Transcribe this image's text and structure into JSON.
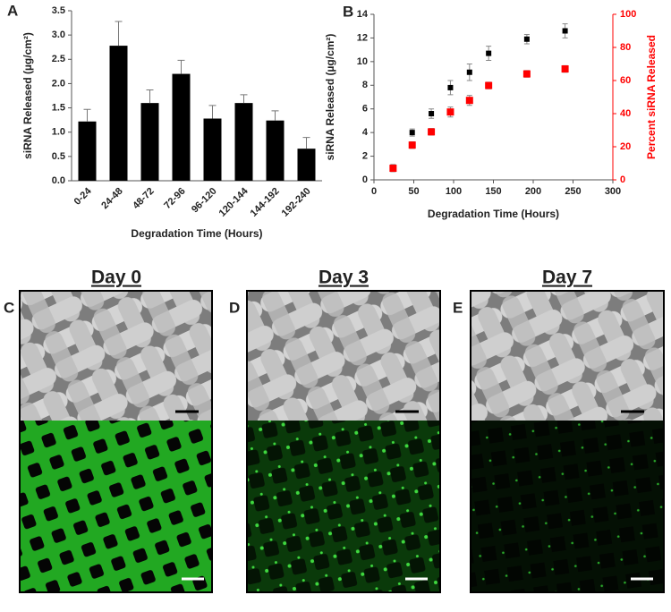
{
  "chart_data": [
    {
      "type": "bar",
      "panel": "A",
      "categories": [
        "0-24",
        "24-48",
        "48-72",
        "72-96",
        "96-120",
        "120-144",
        "144-192",
        "192-240"
      ],
      "values": [
        1.22,
        2.78,
        1.6,
        2.2,
        1.28,
        1.6,
        1.24,
        0.66
      ],
      "errors": [
        0.25,
        0.5,
        0.27,
        0.28,
        0.27,
        0.17,
        0.2,
        0.23
      ],
      "color": "#000000",
      "ylim": [
        0,
        3.5
      ],
      "yticks": [
        {
          "value": 0,
          "label": "0.0"
        },
        {
          "value": 0.5,
          "label": "0.5"
        },
        {
          "value": 1,
          "label": "1.0"
        },
        {
          "value": 1.5,
          "label": "1.5"
        },
        {
          "value": 2,
          "label": "2.0"
        },
        {
          "value": 2.5,
          "label": "2.5"
        },
        {
          "value": 3,
          "label": "3.0"
        },
        {
          "value": 3.5,
          "label": "3.5"
        }
      ],
      "ylabel": "siRNA Released  (µg/cm²)",
      "xlabel": "Degradation Time (Hours)"
    },
    {
      "type": "scatter",
      "panel": "B",
      "x": [
        24,
        48,
        72,
        96,
        120,
        144,
        192,
        240
      ],
      "series": [
        {
          "color": "#000000",
          "values": [
            1.0,
            4.0,
            5.6,
            7.8,
            9.1,
            10.7,
            11.9,
            12.6
          ],
          "errors": [
            0.3,
            0.3,
            0.4,
            0.6,
            0.7,
            0.6,
            0.4,
            0.6
          ]
        },
        {
          "color": "#ff0000",
          "axis": "y2",
          "values": [
            7,
            21,
            29,
            41,
            48,
            57,
            64,
            67
          ],
          "errors": [
            2,
            2,
            2,
            3,
            3,
            2,
            2,
            2
          ]
        }
      ],
      "xlim": [
        0,
        300
      ],
      "xticks": [
        0,
        50,
        100,
        150,
        200,
        250,
        300
      ],
      "ylim": [
        0,
        14
      ],
      "yticks": [
        0,
        2,
        4,
        6,
        8,
        10,
        12,
        14
      ],
      "y2lim": [
        0,
        100
      ],
      "y2ticks": [
        0,
        20,
        40,
        60,
        80,
        100
      ],
      "ylabel": "siRNA Released  (µg/cm²)",
      "y2label": "Percent siRNA Released",
      "xlabel": "Degradation Time (Hours)"
    }
  ],
  "panels": [
    {
      "label": "C",
      "title": "Day 0"
    },
    {
      "label": "D",
      "title": "Day 3"
    },
    {
      "label": "E",
      "title": "Day 7"
    }
  ]
}
